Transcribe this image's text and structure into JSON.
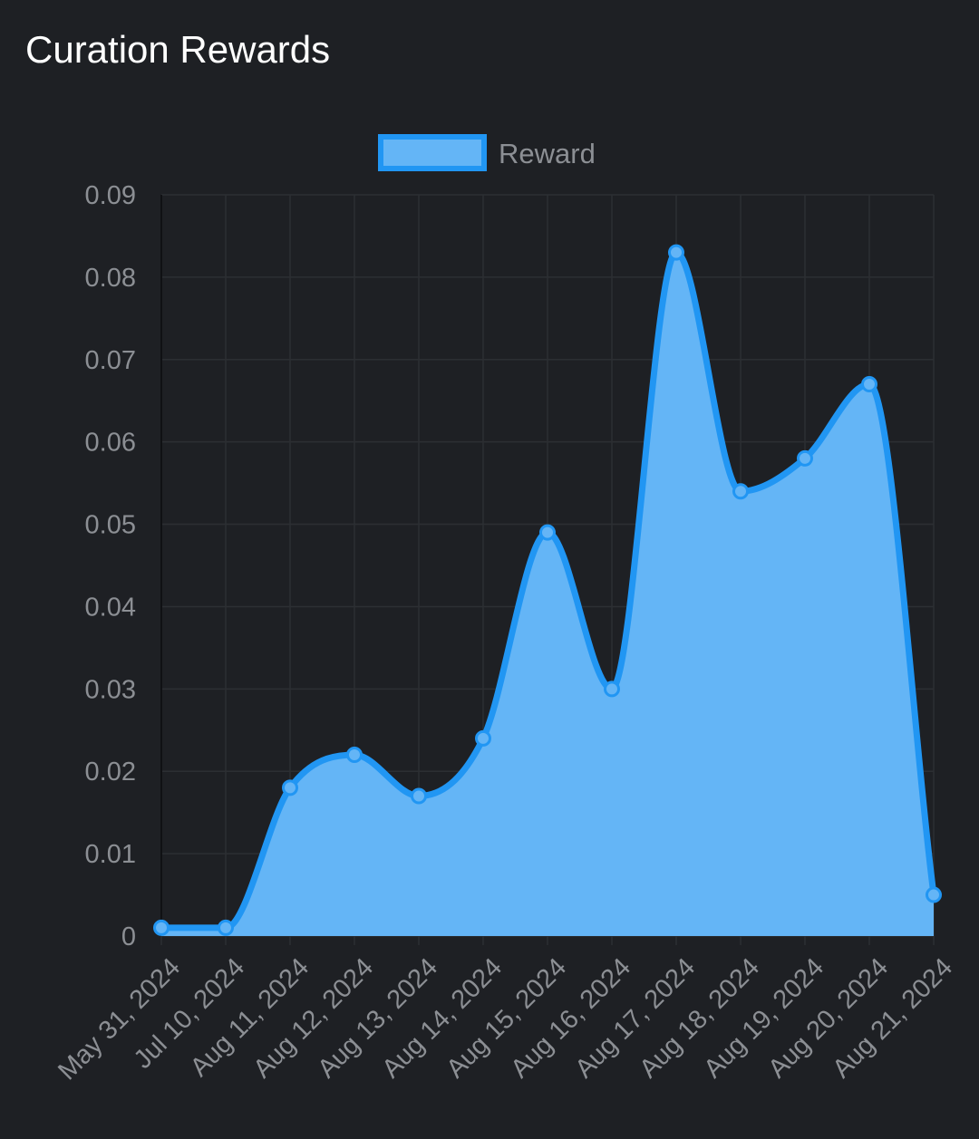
{
  "title": "Curation Rewards",
  "colors": {
    "background": "#1e2024",
    "grid": "#2c2f33",
    "line": "#2196f3",
    "fill": "#64b5f6",
    "point": "#64b5f6",
    "tick_text": "#8c8f94",
    "title_text": "#ffffff"
  },
  "chart_data": {
    "type": "area",
    "title": "",
    "xlabel": "",
    "ylabel": "",
    "categories": [
      "May 31, 2024",
      "Jul 10, 2024",
      "Aug 11, 2024",
      "Aug 12, 2024",
      "Aug 13, 2024",
      "Aug 14, 2024",
      "Aug 15, 2024",
      "Aug 16, 2024",
      "Aug 17, 2024",
      "Aug 18, 2024",
      "Aug 19, 2024",
      "Aug 20, 2024",
      "Aug 21, 2024"
    ],
    "series": [
      {
        "name": "Reward",
        "values": [
          0.001,
          0.001,
          0.018,
          0.022,
          0.017,
          0.024,
          0.049,
          0.03,
          0.083,
          0.054,
          0.058,
          0.067,
          0.005
        ]
      }
    ],
    "ylim": [
      0,
      0.09
    ],
    "yticks": [
      "0",
      "0.01",
      "0.02",
      "0.03",
      "0.04",
      "0.05",
      "0.06",
      "0.07",
      "0.08",
      "0.09"
    ],
    "grid": true,
    "legend_position": "top-center",
    "smooth": true
  }
}
